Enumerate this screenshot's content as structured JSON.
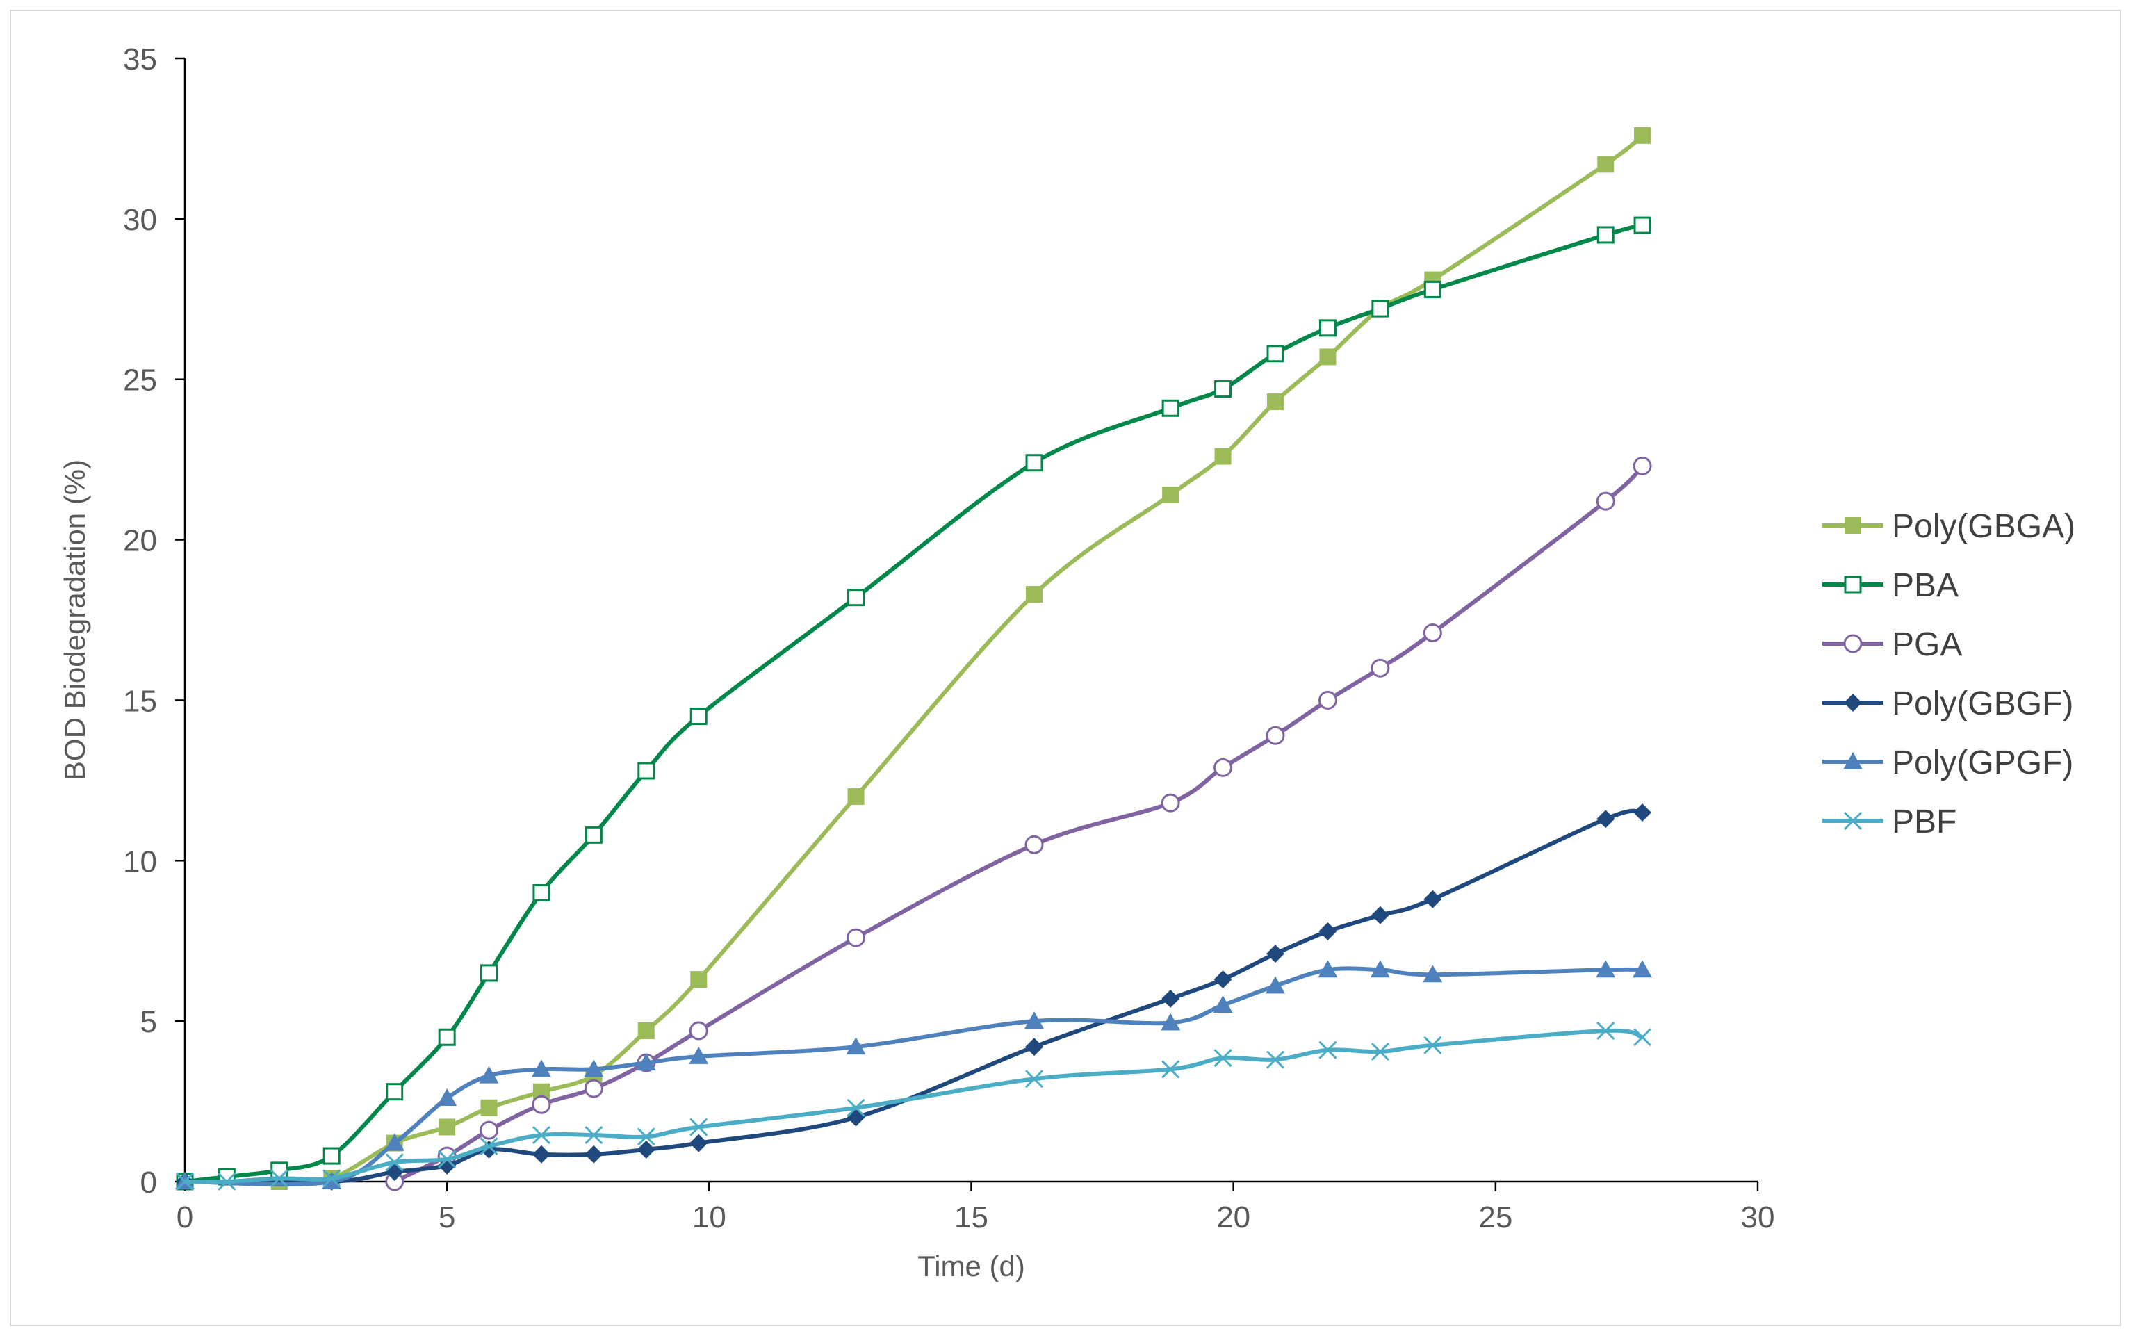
{
  "chart_data": {
    "type": "line",
    "title": "",
    "xlabel": "Time (d)",
    "ylabel": "BOD Biodegradation (%)",
    "xlim": [
      0,
      30
    ],
    "ylim": [
      0,
      35
    ],
    "xticks": [
      0,
      5,
      10,
      15,
      20,
      25,
      30
    ],
    "yticks": [
      0,
      5,
      10,
      15,
      20,
      25,
      30,
      35
    ],
    "grid": false,
    "legend_position": "right",
    "series": [
      {
        "name": "Poly(GBGA)",
        "color": "#9bbb59",
        "marker": "square-filled",
        "x": [
          0,
          1.8,
          2.8,
          4.0,
          5.0,
          5.8,
          6.8,
          7.8,
          8.8,
          9.8,
          12.8,
          16.2,
          18.8,
          19.8,
          20.8,
          21.8,
          22.8,
          23.8,
          27.1,
          27.8
        ],
        "y": [
          0,
          0,
          0.1,
          1.2,
          1.7,
          2.3,
          2.8,
          3.3,
          4.7,
          6.3,
          12.0,
          18.3,
          21.4,
          22.6,
          24.3,
          25.7,
          27.2,
          28.1,
          31.7,
          32.6
        ]
      },
      {
        "name": "PBA",
        "color": "#00884a",
        "marker": "square-open",
        "x": [
          0,
          0.8,
          1.8,
          2.8,
          4.0,
          5.0,
          5.8,
          6.8,
          7.8,
          8.8,
          9.8,
          12.8,
          16.2,
          18.8,
          19.8,
          20.8,
          21.8,
          22.8,
          23.8,
          27.1,
          27.8
        ],
        "y": [
          0,
          0.15,
          0.35,
          0.8,
          2.8,
          4.5,
          6.5,
          9.0,
          10.8,
          12.8,
          14.5,
          18.2,
          22.4,
          24.1,
          24.7,
          25.8,
          26.6,
          27.2,
          27.8,
          29.5,
          29.8
        ]
      },
      {
        "name": "PGA",
        "color": "#8064a2",
        "marker": "circle-open",
        "x": [
          4.0,
          5.0,
          5.8,
          6.8,
          7.8,
          8.8,
          9.8,
          12.8,
          16.2,
          18.8,
          19.8,
          20.8,
          21.8,
          22.8,
          23.8,
          27.1,
          27.8
        ],
        "y": [
          0,
          0.8,
          1.6,
          2.4,
          2.9,
          3.7,
          4.7,
          7.6,
          10.5,
          11.8,
          12.9,
          13.9,
          15.0,
          16.0,
          17.1,
          21.2,
          22.3
        ]
      },
      {
        "name": "Poly(GBGF)",
        "color": "#1f497d",
        "marker": "diamond-filled",
        "x": [
          0,
          2.8,
          4.0,
          5.0,
          5.8,
          6.8,
          7.8,
          8.8,
          9.8,
          12.8,
          16.2,
          18.8,
          19.8,
          20.8,
          21.8,
          22.8,
          23.8,
          27.1,
          27.8
        ],
        "y": [
          0,
          0,
          0.3,
          0.5,
          1.0,
          0.85,
          0.85,
          1.0,
          1.2,
          2.0,
          4.2,
          5.7,
          6.3,
          7.1,
          7.8,
          8.3,
          8.8,
          11.3,
          11.5
        ]
      },
      {
        "name": "Poly(GPGF)",
        "color": "#4f81bd",
        "marker": "triangle-filled",
        "x": [
          0,
          2.8,
          4.0,
          5.0,
          5.8,
          6.8,
          7.8,
          8.8,
          9.8,
          12.8,
          16.2,
          18.8,
          19.8,
          20.8,
          21.8,
          22.8,
          23.8,
          27.1,
          27.8
        ],
        "y": [
          0,
          0,
          1.2,
          2.6,
          3.3,
          3.5,
          3.5,
          3.7,
          3.9,
          4.2,
          5.0,
          4.95,
          5.5,
          6.1,
          6.6,
          6.6,
          6.45,
          6.6,
          6.6
        ]
      },
      {
        "name": "PBF",
        "color": "#4bacc6",
        "marker": "x",
        "x": [
          0,
          0.8,
          1.8,
          2.8,
          4.0,
          5.0,
          5.8,
          6.8,
          7.8,
          8.8,
          9.8,
          12.8,
          16.2,
          18.8,
          19.8,
          20.8,
          21.8,
          22.8,
          23.8,
          27.1,
          27.8
        ],
        "y": [
          0,
          0,
          0.1,
          0.1,
          0.6,
          0.7,
          1.1,
          1.45,
          1.45,
          1.4,
          1.7,
          2.3,
          3.2,
          3.5,
          3.85,
          3.8,
          4.1,
          4.05,
          4.25,
          4.7,
          4.5
        ]
      }
    ]
  }
}
